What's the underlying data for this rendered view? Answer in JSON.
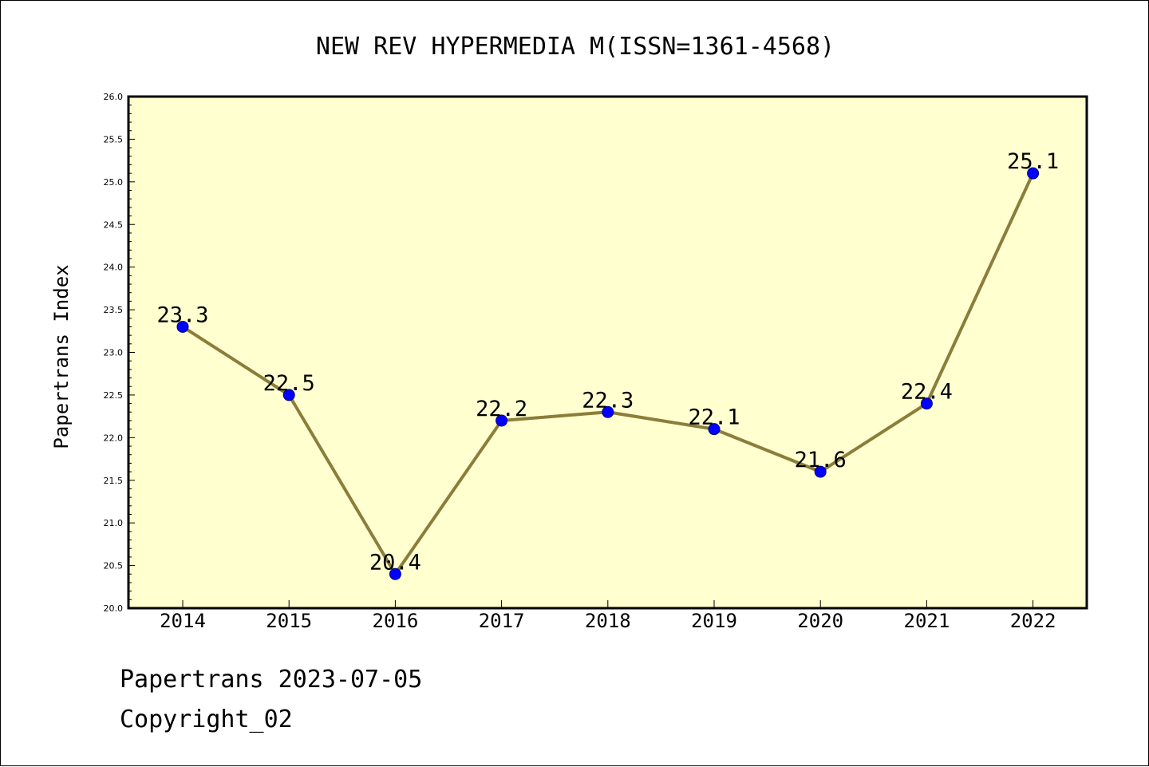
{
  "colors": {
    "plot_background": "#ffffd0",
    "line": "#8b7d3a",
    "marker": "#0000ff",
    "marker_edge": "#000080",
    "axis": "#000000"
  },
  "footer": {
    "date_line": "Papertrans 2023-07-05",
    "copyright_line": "Copyright_02"
  },
  "chart_data": {
    "type": "line",
    "title": "NEW REV HYPERMEDIA M(ISSN=1361-4568)",
    "xlabel": "",
    "ylabel": "Papertrans Index",
    "categories": [
      "2014",
      "2015",
      "2016",
      "2017",
      "2018",
      "2019",
      "2020",
      "2021",
      "2022"
    ],
    "series": [
      {
        "values": [
          23.3,
          22.5,
          20.4,
          22.2,
          22.3,
          22.1,
          21.6,
          22.4,
          25.1
        ],
        "labels": [
          "23.3",
          "22.5",
          "20.4",
          "22.2",
          "22.3",
          "22.1",
          "21.6",
          "22.4",
          "25.1"
        ]
      }
    ],
    "ylim": [
      20.0,
      26.0
    ],
    "yticks": [
      "20.0",
      "20.5",
      "21.0",
      "21.5",
      "22.0",
      "22.5",
      "23.0",
      "23.5",
      "24.0",
      "24.5",
      "25.0",
      "25.5",
      "26.0"
    ],
    "grid": false,
    "legend": "none"
  }
}
